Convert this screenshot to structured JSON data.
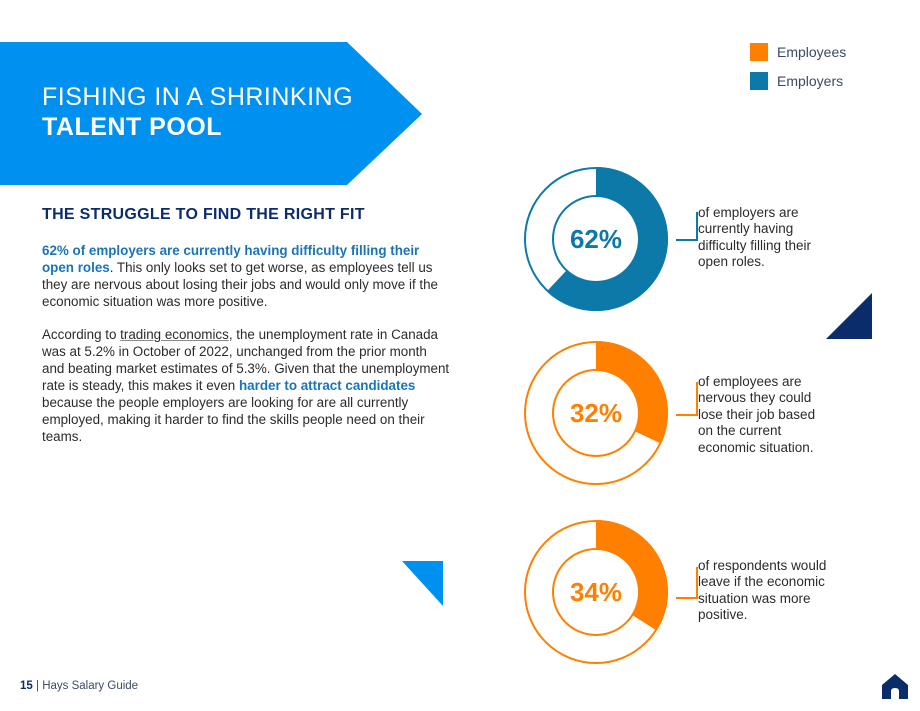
{
  "banner": {
    "line1": "FISHING IN A SHRINKING",
    "line2": "TALENT POOL",
    "color": "#0090f0"
  },
  "section": {
    "heading": "THE STRUGGLE TO FIND THE RIGHT FIT"
  },
  "paragraph1": {
    "highlight": "62% of employers are currently having difficulty filling their open roles",
    "rest": ". This only looks set to get worse, as employees tell us they are nervous about losing their jobs and would only move if the economic situation was more positive."
  },
  "paragraph2": {
    "part1": "According to ",
    "link": "trading economics",
    "part2": ", the unemployment rate in Canada was at 5.2% in October of 2022, unchanged from the prior month and beating market estimates of 5.3%. Given that the unemployment rate is steady, this makes it even ",
    "highlight": "harder to attract candidates",
    "part3": " because the people employers are looking for are all currently employed, making it harder to find the skills people need on their teams."
  },
  "legend": {
    "items": [
      {
        "label": "Employees",
        "color": "#ff8000"
      },
      {
        "label": "Employers",
        "color": "#0d79a8"
      }
    ]
  },
  "chart_data": [
    {
      "type": "pie",
      "variant": "donut",
      "value_label": "62%",
      "values": [
        62,
        38
      ],
      "series": "Employers",
      "color": "#0d79a8",
      "description": "of employers are currently having difficulty filling their open roles."
    },
    {
      "type": "pie",
      "variant": "donut",
      "value_label": "32%",
      "values": [
        32,
        68
      ],
      "series": "Employees",
      "color": "#ff8000",
      "description": "of employees are nervous they could lose their job based on the current economic situation."
    },
    {
      "type": "pie",
      "variant": "donut",
      "value_label": "34%",
      "values": [
        34,
        66
      ],
      "series": "Employees",
      "color": "#ff8000",
      "description": "of respondents would leave if the economic situation was more positive."
    }
  ],
  "footer": {
    "page": "15",
    "separator": " | ",
    "guide": "Hays Salary Guide"
  },
  "icons": {
    "home": "home-icon"
  },
  "colors": {
    "navy": "#0b2c6b",
    "blue": "#0d79a8",
    "bright_blue": "#0090f0",
    "orange": "#ff8000"
  }
}
